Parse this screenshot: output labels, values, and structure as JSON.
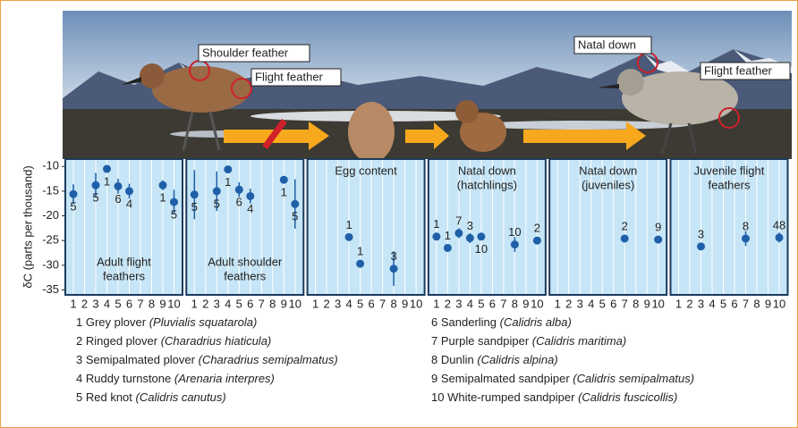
{
  "photo_labels": [
    "Shoulder feather",
    "Flight feather",
    "Natal down",
    "Flight feather"
  ],
  "chart_data": [
    {
      "type": "scatter",
      "title": [
        "Adult flight",
        "feathers"
      ],
      "ylabel": "δC (parts per thousand)",
      "ylim": [
        -8.5,
        -36
      ],
      "yticks": [
        -10,
        -15,
        -20,
        -25,
        -30,
        -35
      ],
      "xticks": [
        1,
        2,
        3,
        4,
        5,
        6,
        7,
        8,
        9,
        10
      ],
      "color": "#1f5fa8",
      "x": [
        1,
        3,
        4,
        5,
        6,
        9,
        10
      ],
      "values": [
        -15.6,
        -13.8,
        -10.5,
        -14,
        -15,
        -13.8,
        -17.2
      ],
      "errors": [
        2,
        2.5,
        null,
        1.5,
        1.5,
        1,
        2.5
      ],
      "n": [
        5,
        5,
        1,
        6,
        4,
        1,
        5
      ]
    },
    {
      "type": "scatter",
      "title": [
        "Adult shoulder",
        "feathers"
      ],
      "xticks": [
        1,
        2,
        3,
        4,
        5,
        6,
        7,
        8,
        9,
        10
      ],
      "color": "#1f5fa8",
      "x": [
        1,
        3,
        4,
        5,
        6,
        9,
        10
      ],
      "values": [
        -15.7,
        -15,
        -10.6,
        -14.7,
        -16,
        -12.7,
        -17.6
      ],
      "errors": [
        5,
        4,
        null,
        1.5,
        1.5,
        null,
        5
      ],
      "n": [
        5,
        5,
        1,
        6,
        4,
        1,
        5
      ]
    },
    {
      "type": "scatter",
      "title": [
        "Egg content"
      ],
      "xticks": [
        1,
        2,
        3,
        4,
        5,
        6,
        7,
        8,
        9,
        10
      ],
      "color": "#1f5fa8",
      "x": [
        4,
        5,
        8
      ],
      "values": [
        -24.3,
        -29.7,
        -30.7
      ],
      "errors": [
        null,
        null,
        3.5
      ],
      "n": [
        1,
        1,
        3
      ]
    },
    {
      "type": "scatter",
      "title": [
        "Natal down",
        "(hatchlings)"
      ],
      "xticks": [
        1,
        2,
        3,
        4,
        5,
        6,
        7,
        8,
        9,
        10
      ],
      "color": "#1f5fa8",
      "x": [
        1,
        2,
        3,
        4,
        5,
        8,
        10
      ],
      "values": [
        -24.2,
        -26.5,
        -23.5,
        -24.5,
        -24.2,
        -25.8,
        -25
      ],
      "errors": [
        null,
        null,
        1,
        1,
        null,
        1.5,
        null
      ],
      "n": [
        1,
        1,
        7,
        3,
        10,
        10,
        2
      ]
    },
    {
      "type": "scatter",
      "title": [
        "Natal down",
        "(juveniles)"
      ],
      "xticks": [
        1,
        2,
        3,
        4,
        5,
        6,
        7,
        8,
        9,
        10
      ],
      "color": "#1f5fa8",
      "x": [
        7,
        10
      ],
      "values": [
        -24.6,
        -24.8
      ],
      "errors": [
        null,
        null
      ],
      "n": [
        2,
        9
      ]
    },
    {
      "type": "scatter",
      "title": [
        "Juvenile flight",
        "feathers"
      ],
      "xticks": [
        1,
        2,
        3,
        4,
        5,
        6,
        7,
        8,
        9,
        10
      ],
      "color": "#1f5fa8",
      "x": [
        3,
        7,
        10
      ],
      "values": [
        -26.2,
        -24.6,
        -24.4
      ],
      "errors": [
        null,
        1.5,
        1
      ],
      "n": [
        3,
        8,
        48
      ]
    }
  ],
  "species": [
    {
      "number": 1,
      "name": "Grey plover",
      "latin": "(Pluvialis squatarola)"
    },
    {
      "number": 2,
      "name": "Ringed plover",
      "latin": "(Charadrius hiaticula)"
    },
    {
      "number": 3,
      "name": "Semipalmated plover",
      "latin": "(Charadrius semipalmatus)"
    },
    {
      "number": 4,
      "name": "Ruddy turnstone",
      "latin": "(Arenaria interpres)"
    },
    {
      "number": 5,
      "name": "Red knot",
      "latin": "(Calidris canutus)"
    },
    {
      "number": 6,
      "name": "Sanderling",
      "latin": "(Calidris alba)"
    },
    {
      "number": 7,
      "name": "Purple sandpiper",
      "latin": "(Calidris maritima)"
    },
    {
      "number": 8,
      "name": "Dunlin",
      "latin": "(Calidris alpina)"
    },
    {
      "number": 9,
      "name": "Semipalmated sandpiper",
      "latin": "(Calidris semipalmatus)"
    },
    {
      "number": 10,
      "name": "White-rumped sandpiper",
      "latin": "(Calidris fuscicollis)"
    }
  ]
}
